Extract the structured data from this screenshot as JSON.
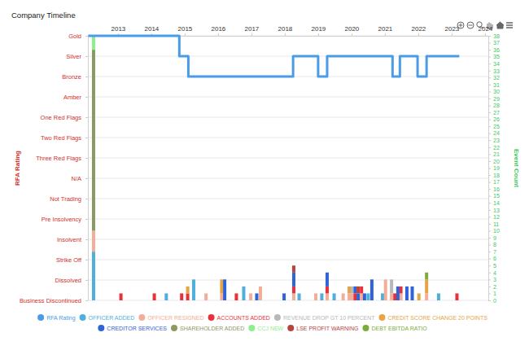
{
  "chart_data": {
    "type": "bar",
    "title": "Company Timeline",
    "y_label": "RFA Rating",
    "y2_label": "Event Count",
    "stacked": true,
    "grid": true,
    "legend": "bottom",
    "xlim": [
      2012.1,
      2024.1
    ],
    "xticks": [
      2013,
      2014,
      2015,
      2016,
      2017,
      2018,
      2019,
      2020,
      2021,
      2022,
      2023,
      2024
    ],
    "ylim": [
      0,
      13
    ],
    "yticks": [
      {
        "value": 0,
        "label": "Business Discontinued"
      },
      {
        "value": 1,
        "label": "Dissolved"
      },
      {
        "value": 2,
        "label": "Strike Off"
      },
      {
        "value": 3,
        "label": "Insolvent"
      },
      {
        "value": 4,
        "label": "Pre Insolvency"
      },
      {
        "value": 5,
        "label": "Not Trading"
      },
      {
        "value": 6,
        "label": "N/A"
      },
      {
        "value": 7,
        "label": "Three Red Flags"
      },
      {
        "value": 8,
        "label": "Two Red Flags"
      },
      {
        "value": 9,
        "label": "One Red Flags"
      },
      {
        "value": 10,
        "label": "Amber"
      },
      {
        "value": 11,
        "label": "Bronze"
      },
      {
        "value": 12,
        "label": "Silver"
      },
      {
        "value": 13,
        "label": "Gold"
      }
    ],
    "y2lim": [
      0,
      38
    ],
    "y2ticks": [
      0,
      1,
      2,
      3,
      4,
      5,
      6,
      7,
      8,
      9,
      10,
      11,
      12,
      13,
      14,
      15,
      16,
      17,
      18,
      19,
      20,
      21,
      22,
      23,
      24,
      25,
      26,
      27,
      28,
      29,
      30,
      31,
      32,
      33,
      34,
      35,
      36,
      37,
      38
    ],
    "x": [
      2012.27,
      2013.09,
      2014.09,
      2014.45,
      2014.91,
      2015.09,
      2015.27,
      2015.64,
      2016.11,
      2016.2,
      2016.55,
      2016.77,
      2016.98,
      2017.16,
      2017.27,
      2017.98,
      2018.27,
      2018.43,
      2018.93,
      2019.11,
      2019.27,
      2019.48,
      2019.75,
      2019.93,
      2020.02,
      2020.11,
      2020.2,
      2020.3,
      2020.39,
      2020.5,
      2020.61,
      2020.93,
      2021.02,
      2021.2,
      2021.3,
      2021.39,
      2021.48,
      2021.66,
      2021.82,
      2022.02,
      2022.25,
      2022.61,
      2023.16
    ],
    "series": [
      {
        "name": "RFA Rating",
        "color": "#4a9be8",
        "type": "line",
        "line_style": "step",
        "x": [
          2012.11,
          2014.84,
          2015.11,
          2018.25,
          2019.0,
          2019.27,
          2021.23,
          2021.45,
          2021.98,
          2022.25,
          2023.23
        ],
        "values": [
          13,
          12,
          11,
          12,
          11,
          12,
          11,
          12,
          11,
          12,
          12
        ]
      },
      {
        "name": "OFFICER ADDED",
        "color": "#4fb0dc",
        "type": "bar",
        "axis": "y2",
        "values": [
          7,
          null,
          null,
          1,
          null,
          null,
          3,
          null,
          null,
          null,
          null,
          2,
          null,
          null,
          null,
          null,
          null,
          1,
          null,
          1,
          null,
          1,
          null,
          null,
          null,
          null,
          null,
          null,
          null,
          1,
          null,
          1,
          null,
          null,
          null,
          null,
          null,
          null,
          null,
          null,
          null,
          1,
          null
        ]
      },
      {
        "name": "OFFICER RESIGNED",
        "color": "#f2ae98",
        "type": "bar",
        "axis": "y2",
        "values": [
          3,
          null,
          null,
          null,
          null,
          null,
          null,
          1,
          1,
          null,
          null,
          null,
          1,
          null,
          2,
          null,
          1,
          null,
          1,
          null,
          1,
          null,
          1,
          1,
          1,
          null,
          null,
          1,
          null,
          null,
          null,
          null,
          3,
          1,
          null,
          null,
          1,
          null,
          null,
          null,
          1,
          null,
          null
        ]
      },
      {
        "name": "ACCOUNTS ADDED",
        "color": "#e8303a",
        "type": "bar",
        "axis": "y2",
        "values": [
          null,
          1,
          1,
          null,
          1,
          1,
          null,
          null,
          null,
          null,
          1,
          null,
          null,
          null,
          null,
          null,
          1,
          null,
          null,
          null,
          1,
          null,
          null,
          null,
          null,
          1,
          null,
          1,
          null,
          null,
          null,
          null,
          null,
          null,
          1,
          null,
          1,
          null,
          null,
          null,
          null,
          null,
          1
        ]
      },
      {
        "name": "REVENUE DROP GT 10 PERCENT",
        "color": "#b8b8b8",
        "type": "bar",
        "axis": "y2",
        "values": [
          null,
          null,
          null,
          null,
          null,
          null,
          null,
          null,
          null,
          null,
          null,
          null,
          null,
          null,
          null,
          null,
          null,
          null,
          null,
          null,
          null,
          null,
          null,
          null,
          1,
          null,
          null,
          null,
          null,
          null,
          null,
          null,
          null,
          2,
          null,
          null,
          null,
          null,
          null,
          null,
          null,
          null,
          null
        ]
      },
      {
        "name": "CREDIT SCORE CHANGE 20 POINTS",
        "color": "#e6a545",
        "type": "bar",
        "axis": "y2",
        "values": [
          null,
          null,
          null,
          null,
          null,
          1,
          null,
          null,
          2,
          null,
          null,
          null,
          null,
          null,
          null,
          null,
          null,
          null,
          null,
          null,
          null,
          null,
          null,
          1,
          null,
          null,
          null,
          null,
          null,
          null,
          null,
          null,
          null,
          null,
          null,
          null,
          null,
          null,
          null,
          1,
          2,
          null,
          null
        ]
      },
      {
        "name": "CREDITOR SERVICES",
        "color": "#2f63d6",
        "type": "bar",
        "axis": "y2",
        "values": [
          null,
          null,
          null,
          null,
          null,
          null,
          null,
          null,
          null,
          3,
          null,
          null,
          null,
          1,
          null,
          1,
          2,
          null,
          null,
          null,
          2,
          null,
          null,
          null,
          null,
          1,
          1,
          null,
          1,
          null,
          3,
          null,
          null,
          null,
          null,
          2,
          null,
          2,
          2,
          null,
          null,
          null,
          null
        ]
      },
      {
        "name": "SHAREHOLDER ADDED",
        "color": "#8b9a62",
        "type": "bar",
        "axis": "y2",
        "values": [
          26,
          null,
          null,
          null,
          null,
          null,
          null,
          null,
          null,
          null,
          null,
          null,
          null,
          null,
          null,
          null,
          null,
          null,
          null,
          null,
          null,
          null,
          null,
          null,
          null,
          null,
          null,
          null,
          null,
          null,
          null,
          null,
          null,
          null,
          null,
          null,
          null,
          null,
          null,
          null,
          null,
          null,
          null
        ]
      },
      {
        "name": "CCJ NEW",
        "color": "#8cf08c",
        "type": "bar",
        "axis": "y2",
        "values": [
          2,
          null,
          null,
          null,
          null,
          null,
          null,
          null,
          null,
          null,
          null,
          null,
          null,
          null,
          null,
          null,
          null,
          null,
          null,
          null,
          null,
          null,
          null,
          null,
          null,
          null,
          null,
          null,
          null,
          null,
          null,
          null,
          null,
          null,
          null,
          null,
          null,
          null,
          null,
          null,
          null,
          null,
          null
        ]
      },
      {
        "name": "LSE PROFIT WARNING",
        "color": "#b8433f",
        "type": "bar",
        "axis": "y2",
        "values": [
          null,
          null,
          null,
          null,
          null,
          null,
          null,
          null,
          null,
          null,
          null,
          null,
          null,
          null,
          null,
          null,
          1,
          null,
          null,
          null,
          null,
          null,
          null,
          null,
          null,
          null,
          1,
          null,
          null,
          null,
          null,
          null,
          null,
          null,
          null,
          null,
          null,
          null,
          null,
          null,
          null,
          null,
          null
        ]
      },
      {
        "name": "DEBT EBITDA RATIO",
        "color": "#7cad3a",
        "type": "bar",
        "axis": "y2",
        "values": [
          null,
          null,
          null,
          null,
          null,
          null,
          null,
          null,
          null,
          null,
          null,
          null,
          null,
          null,
          null,
          null,
          null,
          null,
          null,
          null,
          null,
          null,
          null,
          null,
          null,
          null,
          null,
          null,
          null,
          null,
          null,
          null,
          null,
          null,
          null,
          null,
          null,
          null,
          null,
          null,
          1,
          null,
          null
        ]
      }
    ]
  }
}
